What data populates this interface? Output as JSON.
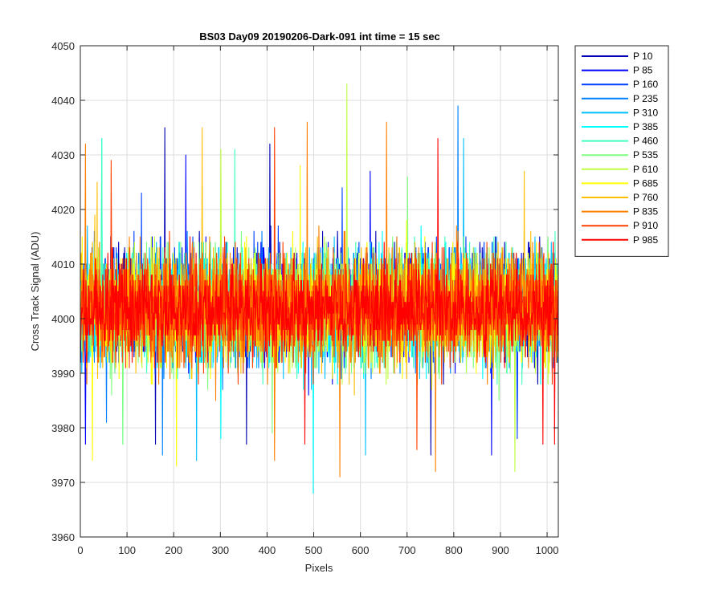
{
  "chart_data": {
    "type": "line",
    "title": "BS03 Day09 20190206-Dark-091 int time = 15 sec",
    "xlabel": "Pixels",
    "ylabel": "Cross Track Signal (ADU)",
    "xlim": [
      0,
      1024
    ],
    "ylim": [
      3960,
      4050
    ],
    "xticks": [
      0,
      100,
      200,
      300,
      400,
      500,
      600,
      700,
      800,
      900,
      1000
    ],
    "yticks": [
      3960,
      3970,
      3980,
      3990,
      4000,
      4010,
      4020,
      4030,
      4040,
      4050
    ],
    "grid": true,
    "legend_position": "outside-top-right",
    "series": [
      {
        "name": "P 10",
        "color": "#0000B4",
        "mean": 4003,
        "spread": 8.5,
        "peaks": [
          [
            180,
            4035
          ],
          [
            405,
            4032
          ],
          [
            160,
            3977
          ],
          [
            355,
            3977
          ],
          [
            750,
            3975
          ]
        ]
      },
      {
        "name": "P 85",
        "color": "#0000FF",
        "mean": 4002.5,
        "spread": 8.5,
        "peaks": [
          [
            10,
            3977
          ],
          [
            880,
            3975
          ],
          [
            225,
            4030
          ],
          [
            620,
            4027
          ]
        ]
      },
      {
        "name": "P 160",
        "color": "#0040FF",
        "mean": 4002.5,
        "spread": 8.5,
        "peaks": [
          [
            130,
            4023
          ],
          [
            560,
            4024
          ],
          [
            935,
            3978
          ]
        ]
      },
      {
        "name": "P 235",
        "color": "#0080FF",
        "mean": 4002,
        "spread": 8.5,
        "peaks": [
          [
            808,
            4039
          ],
          [
            175,
            3975
          ],
          [
            55,
            3981
          ]
        ]
      },
      {
        "name": "P 310",
        "color": "#00BFFF",
        "mean": 4002,
        "spread": 8.5,
        "peaks": [
          [
            248,
            3974
          ],
          [
            610,
            3975
          ],
          [
            820,
            4033
          ]
        ]
      },
      {
        "name": "P 385",
        "color": "#00FFFF",
        "mean": 4002,
        "spread": 8.5,
        "peaks": [
          [
            498,
            3968
          ],
          [
            45,
            4033
          ],
          [
            300,
            3978
          ]
        ]
      },
      {
        "name": "P 460",
        "color": "#40FFBF",
        "mean": 4002,
        "spread": 8.5,
        "peaks": [
          [
            45,
            4033
          ],
          [
            330,
            4031
          ],
          [
            90,
            3977
          ]
        ]
      },
      {
        "name": "P 535",
        "color": "#80FF80",
        "mean": 4002,
        "spread": 8.5,
        "peaks": [
          [
            90,
            3977
          ],
          [
            700,
            4026
          ],
          [
            410,
            3979
          ]
        ]
      },
      {
        "name": "P 610",
        "color": "#BFFF40",
        "mean": 4002,
        "spread": 8.5,
        "peaks": [
          [
            570,
            4043
          ],
          [
            930,
            3972
          ],
          [
            300,
            4031
          ]
        ]
      },
      {
        "name": "P 685",
        "color": "#FFFF00",
        "mean": 4002,
        "spread": 8.5,
        "peaks": [
          [
            205,
            3973
          ],
          [
            25,
            3974
          ],
          [
            470,
            4028
          ]
        ]
      },
      {
        "name": "P 760",
        "color": "#FFBF00",
        "mean": 4002,
        "spread": 8.5,
        "peaks": [
          [
            260,
            4035
          ],
          [
            35,
            4025
          ],
          [
            950,
            4027
          ]
        ]
      },
      {
        "name": "P 835",
        "color": "#FF8000",
        "mean": 4002,
        "spread": 8.5,
        "peaks": [
          [
            485,
            4036
          ],
          [
            555,
            3971
          ],
          [
            655,
            4036
          ],
          [
            10,
            4032
          ],
          [
            415,
            3974
          ],
          [
            760,
            3972
          ]
        ]
      },
      {
        "name": "P 910",
        "color": "#FF4000",
        "mean": 4002,
        "spread": 8.5,
        "peaks": [
          [
            415,
            4035
          ],
          [
            720,
            3976
          ],
          [
            65,
            4029
          ]
        ]
      },
      {
        "name": "P 985",
        "color": "#FF0000",
        "mean": 4002,
        "spread": 7,
        "peaks": [
          [
            765,
            4033
          ],
          [
            480,
            3977
          ],
          [
            1015,
            3977
          ],
          [
            990,
            3977
          ]
        ]
      }
    ]
  }
}
